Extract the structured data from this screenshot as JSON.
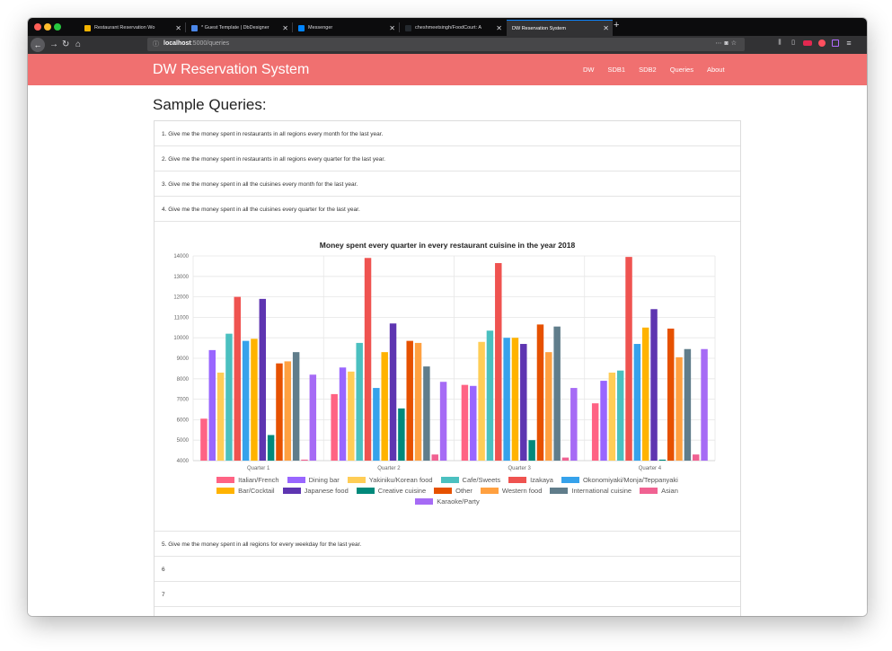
{
  "browser": {
    "tabs": [
      {
        "label": "Restaurant Reservation Wo",
        "fav_color": "#f4b400",
        "active": false
      },
      {
        "label": "* Guest Template | DbDesigner",
        "fav_color": "#4a86e8",
        "active": false
      },
      {
        "label": "Messenger",
        "fav_color": "#0084ff",
        "active": false
      },
      {
        "label": "cheshmeetsingh/FoodCourt: A",
        "fav_color": "#24292e",
        "active": false
      },
      {
        "label": "DW Reservation System",
        "fav_color": "",
        "active": true
      }
    ],
    "url_host": "localhost",
    "url_rest": ":5000/queries"
  },
  "app": {
    "brand": "DW Reservation System",
    "nav": [
      "DW",
      "SDB1",
      "SDB2",
      "Queries",
      "About"
    ]
  },
  "page": {
    "title": "Sample Queries:",
    "queries": [
      "1. Give me the money spent in restaurants in all regions every month for the last year.",
      "2. Give me the money spent in restaurants in all regions every quarter for the last year.",
      "3. Give me the money spent in all the cuisines every month for the last year.",
      "4. Give me the money spent in all the cuisines every quarter for the last year."
    ],
    "queries_after": [
      "5. Give me the money spent in all regions for every weekday for the last year.",
      "6",
      "7"
    ]
  },
  "chart_data": {
    "type": "bar",
    "title": "Money spent every quarter in every restaurant cuisine in the year 2018",
    "categories": [
      "Quarter 1",
      "Quarter 2",
      "Quarter 3",
      "Quarter 4"
    ],
    "ylim": [
      4000,
      14000
    ],
    "yticks": [
      4000,
      5000,
      6000,
      7000,
      8000,
      9000,
      10000,
      11000,
      12000,
      13000,
      14000
    ],
    "grid": true,
    "legend_position": "bottom",
    "series": [
      {
        "name": "Italian/French",
        "color": "#ff6384",
        "values": [
          6050,
          7250,
          7700,
          6800
        ]
      },
      {
        "name": "Dining bar",
        "color": "#9966ff",
        "values": [
          9400,
          8550,
          7650,
          7900
        ]
      },
      {
        "name": "Yakiniku/Korean food",
        "color": "#ffcd56",
        "values": [
          8300,
          8350,
          9800,
          8300
        ]
      },
      {
        "name": "Cafe/Sweets",
        "color": "#4bc0c0",
        "values": [
          10200,
          9750,
          10350,
          8400
        ]
      },
      {
        "name": "Izakaya",
        "color": "#ef5350",
        "values": [
          12000,
          13900,
          13650,
          13950
        ]
      },
      {
        "name": "Okonomiyaki/Monja/Teppanyaki",
        "color": "#36a2eb",
        "values": [
          9850,
          7550,
          10000,
          9700
        ]
      },
      {
        "name": "Bar/Cocktail",
        "color": "#ffb300",
        "values": [
          9950,
          9300,
          10000,
          10500
        ]
      },
      {
        "name": "Japanese food",
        "color": "#5e35b1",
        "values": [
          11900,
          10700,
          9700,
          11400
        ]
      },
      {
        "name": "Creative cuisine",
        "color": "#00897b",
        "values": [
          5250,
          6550,
          5000,
          4050
        ]
      },
      {
        "name": "Other",
        "color": "#e65100",
        "values": [
          8750,
          9850,
          10650,
          10450
        ]
      },
      {
        "name": "Western food",
        "color": "#ffa040",
        "values": [
          8850,
          9750,
          9300,
          9050
        ]
      },
      {
        "name": "International cuisine",
        "color": "#607d8b",
        "values": [
          9300,
          8600,
          10550,
          9450
        ]
      },
      {
        "name": "Asian",
        "color": "#f06292",
        "values": [
          4050,
          4300,
          4150,
          4300
        ]
      },
      {
        "name": "Karaoke/Party",
        "color": "#a66bf5",
        "values": [
          8200,
          7850,
          7550,
          9450
        ]
      }
    ],
    "legend_rows": [
      [
        0,
        1,
        2,
        3,
        4,
        5
      ],
      [
        6,
        7,
        8,
        9,
        10,
        11,
        12
      ],
      [
        13
      ]
    ]
  }
}
